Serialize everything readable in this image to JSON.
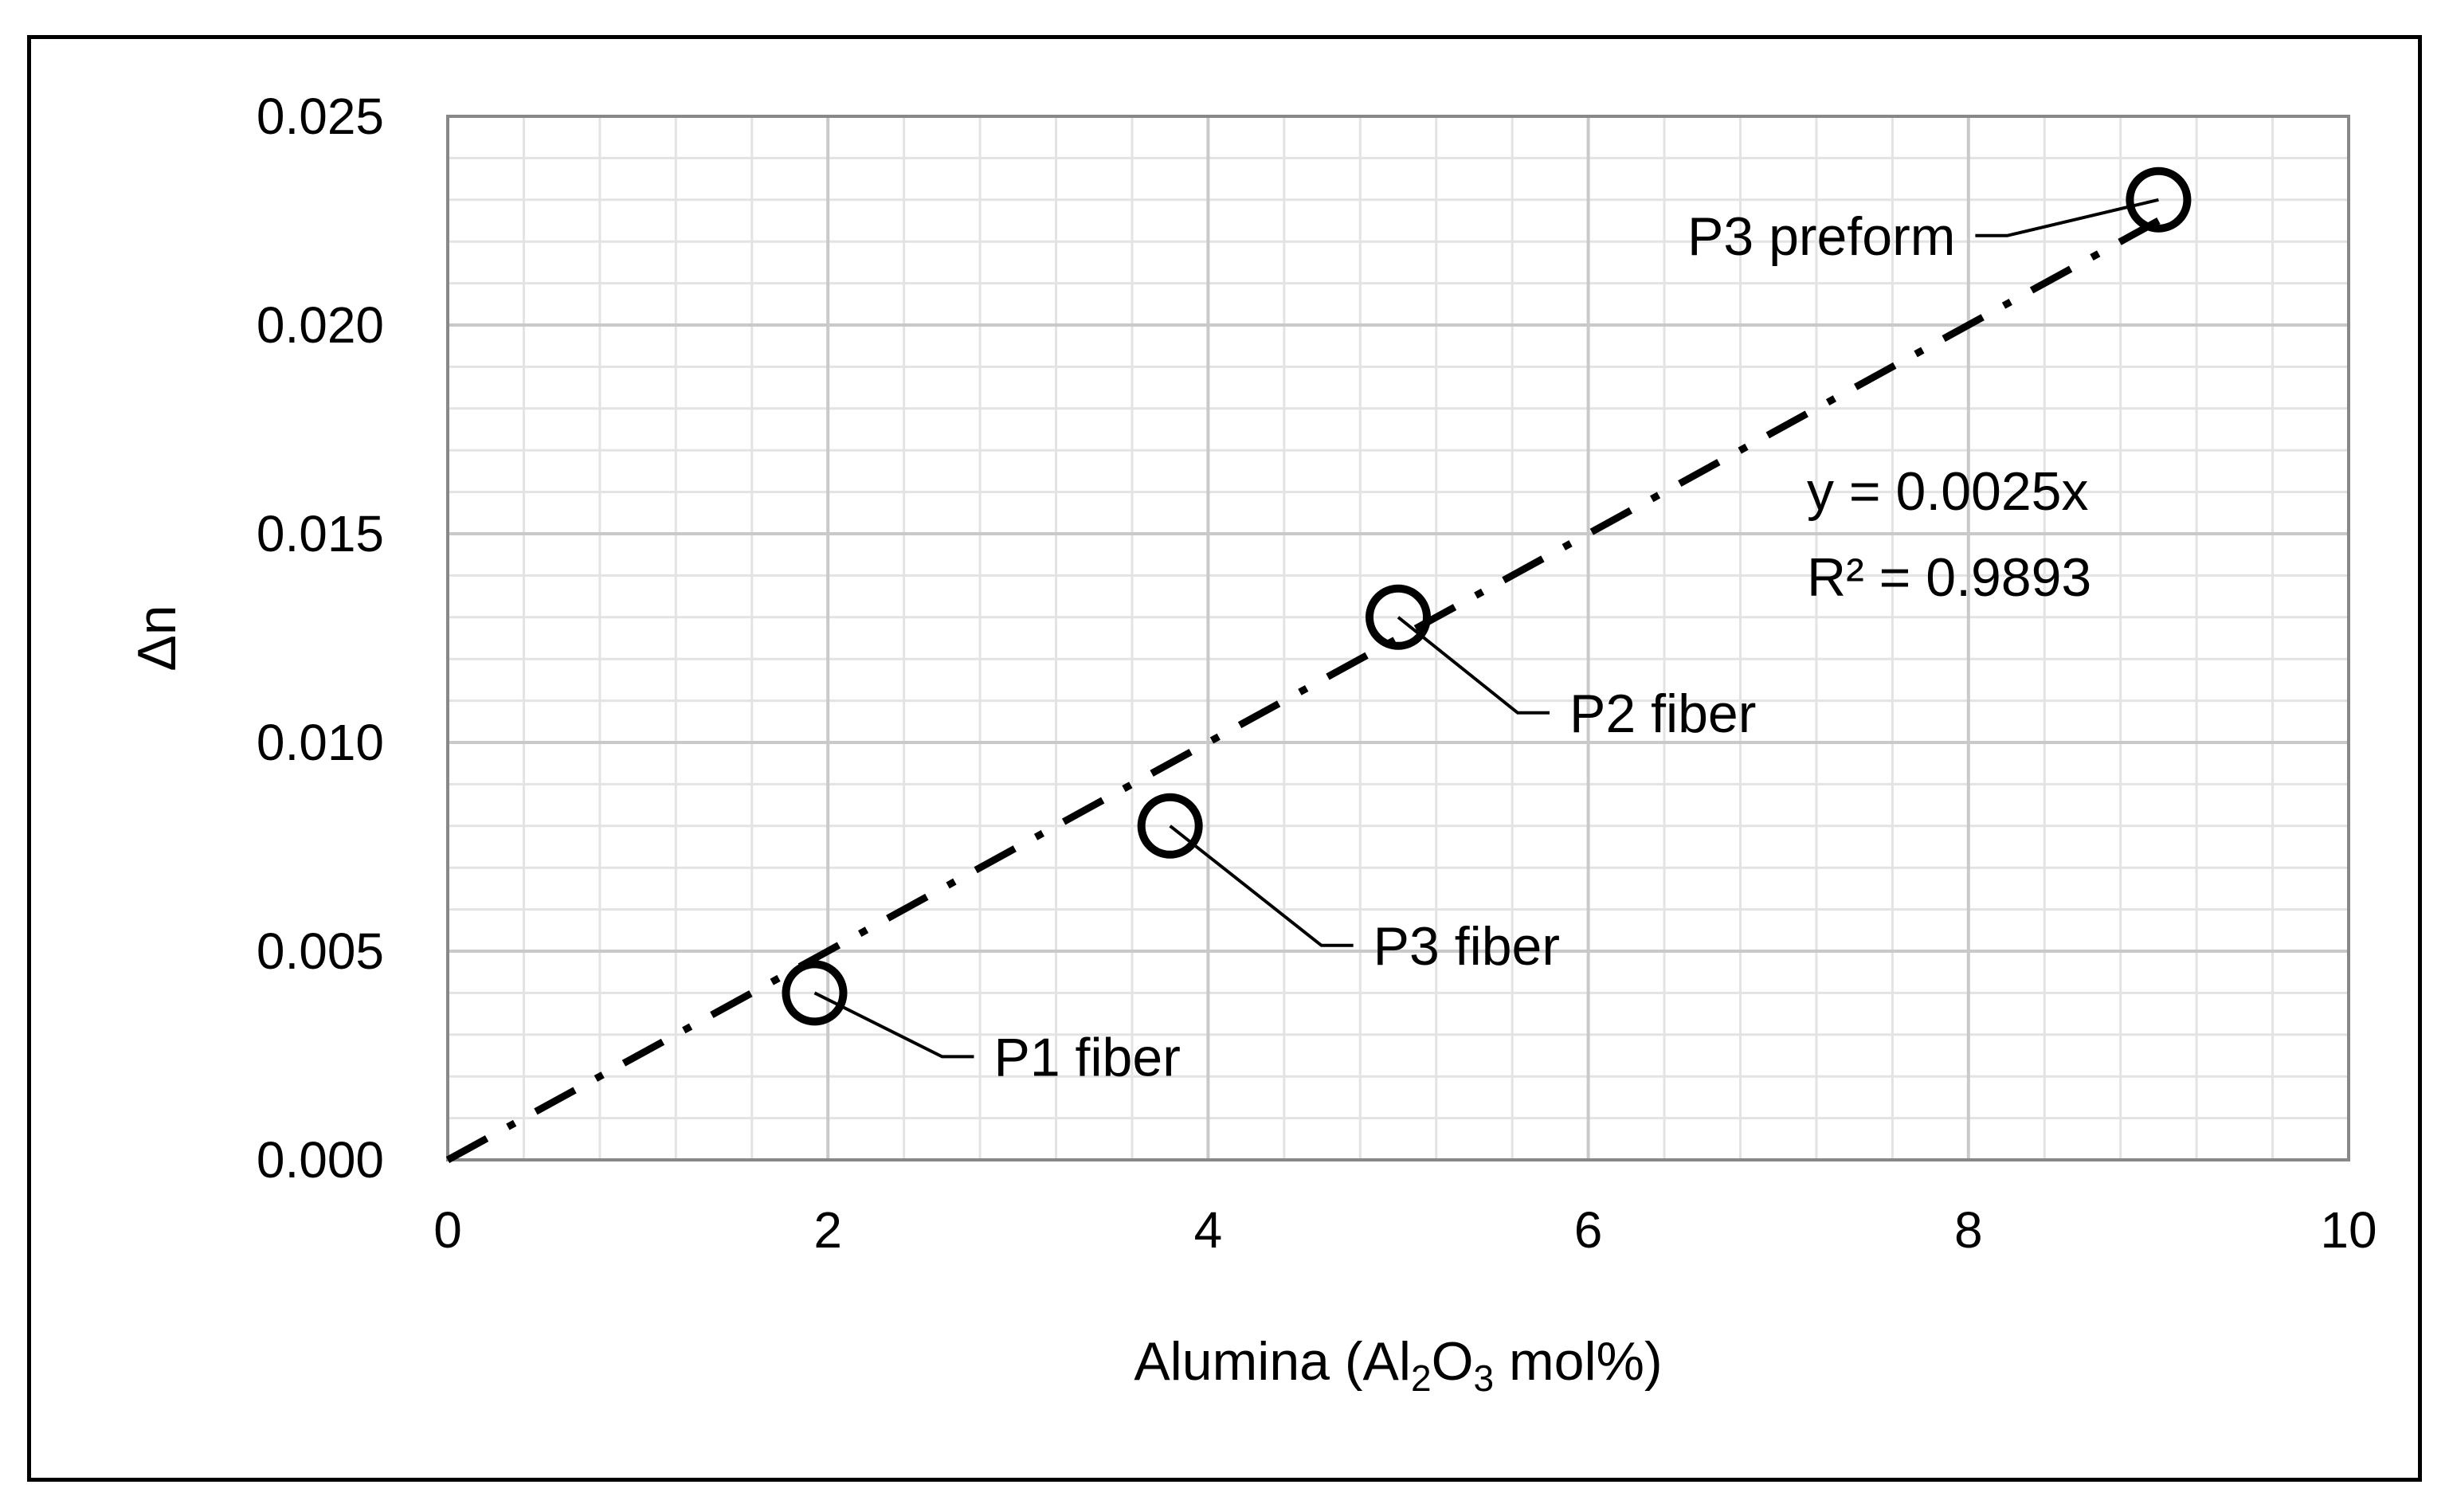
{
  "chart_data": {
    "type": "scatter",
    "xlabel_parts": {
      "prefix": "Alumina (Al",
      "sub1": "2",
      "mid": "O",
      "sub2": "3",
      "suffix": " mol%)"
    },
    "ylabel": "Δn",
    "xlim": [
      0,
      10
    ],
    "ylim": [
      0,
      0.025
    ],
    "x_ticks": [
      {
        "value": 0,
        "label": "0"
      },
      {
        "value": 2,
        "label": "2"
      },
      {
        "value": 4,
        "label": "4"
      },
      {
        "value": 6,
        "label": "6"
      },
      {
        "value": 8,
        "label": "8"
      },
      {
        "value": 10,
        "label": "10"
      }
    ],
    "y_ticks": [
      {
        "value": 0,
        "label": "0.000"
      },
      {
        "value": 0.005,
        "label": "0.005"
      },
      {
        "value": 0.01,
        "label": "0.010"
      },
      {
        "value": 0.015,
        "label": "0.015"
      },
      {
        "value": 0.02,
        "label": "0.020"
      },
      {
        "value": 0.025,
        "label": "0.025"
      }
    ],
    "grid": {
      "major": true,
      "minor": true
    },
    "points": [
      {
        "x": 1.93,
        "y": 0.004,
        "label": "P1 fiber"
      },
      {
        "x": 3.8,
        "y": 0.008,
        "label": "P3 fiber"
      },
      {
        "x": 5.0,
        "y": 0.013,
        "label": "P2 fiber"
      },
      {
        "x": 9.0,
        "y": 0.023,
        "label": "P3 preform"
      }
    ],
    "trendline": {
      "slope": 0.0025,
      "x_range": [
        0,
        9.0
      ],
      "style": "dash-dot",
      "equation": "y = 0.0025x",
      "r_squared": "R² = 0.9893"
    }
  }
}
